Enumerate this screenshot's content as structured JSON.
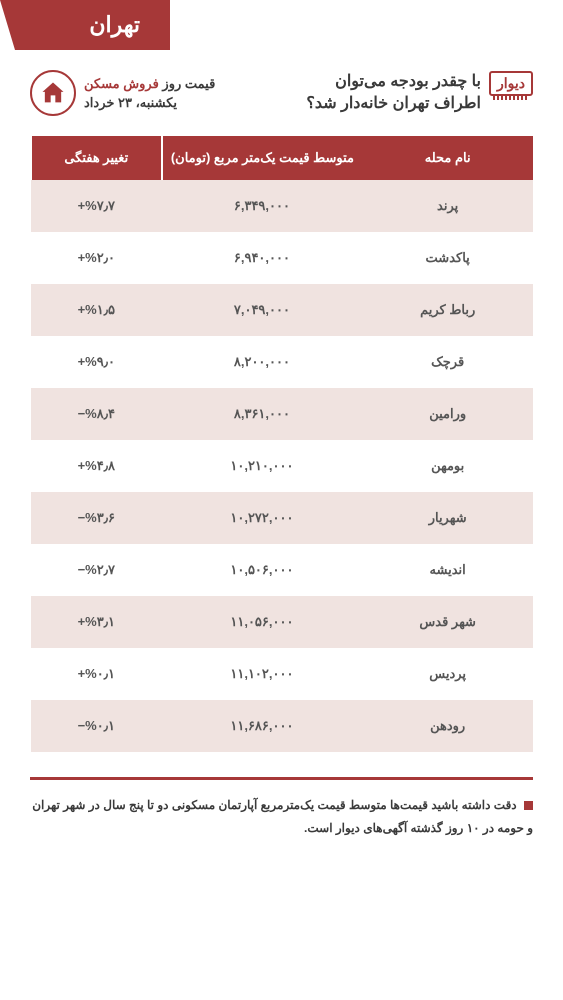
{
  "banner": {
    "city": "تهران"
  },
  "header": {
    "logo_text": "دیوار",
    "title_line1": "با چقدر بودجه می‌توان",
    "title_line2": "اطراف تهران خانه‌دار شد؟",
    "date_label_pre": "قیمت روز",
    "date_label_accent": "فروش مسکن",
    "date_line2": "یکشنبه، ۲۳ خرداد"
  },
  "table": {
    "columns": {
      "name": "نام محله",
      "price": "متوسط قیمت یک‌متر مربع (تومان)",
      "change": "تغییر هفتگی"
    },
    "rows": [
      {
        "name": "پرند",
        "price": "۶,۳۴۹,۰۰۰",
        "change": "+%۷٫۷"
      },
      {
        "name": "پاکدشت",
        "price": "۶,۹۴۰,۰۰۰",
        "change": "+%۲٫۰"
      },
      {
        "name": "رباط کریم",
        "price": "۷,۰۴۹,۰۰۰",
        "change": "+%۱٫۵"
      },
      {
        "name": "قرچک",
        "price": "۸,۲۰۰,۰۰۰",
        "change": "+%۹٫۰"
      },
      {
        "name": "ورامین",
        "price": "۸,۳۶۱,۰۰۰",
        "change": "−%۸٫۴"
      },
      {
        "name": "بومهن",
        "price": "۱۰,۲۱۰,۰۰۰",
        "change": "+%۴٫۸"
      },
      {
        "name": "شهریار",
        "price": "۱۰,۲۷۲,۰۰۰",
        "change": "−%۳٫۶"
      },
      {
        "name": "اندیشه",
        "price": "۱۰,۵۰۶,۰۰۰",
        "change": "−%۲٫۷"
      },
      {
        "name": "شهر قدس",
        "price": "۱۱,۰۵۶,۰۰۰",
        "change": "+%۳٫۱"
      },
      {
        "name": "پردیس",
        "price": "۱۱,۱۰۲,۰۰۰",
        "change": "+%۰٫۱"
      },
      {
        "name": "رودهن",
        "price": "۱۱,۶۸۶,۰۰۰",
        "change": "−%۰٫۱"
      }
    ]
  },
  "footer": {
    "text": "دقت داشته باشید قیمت‌ها متوسط قیمت یک‌مترمربع آپارتمان مسکونی دو تا پنج سال در شهر تهران و حومه در ۱۰ روز گذشته آگهی‌های دیوار است."
  },
  "style": {
    "accent": "#a63838",
    "row_alt_bg": "#f0e3e0",
    "row_bg": "#ffffff",
    "text_dark": "#3a3a3a",
    "text_body": "#555555"
  }
}
